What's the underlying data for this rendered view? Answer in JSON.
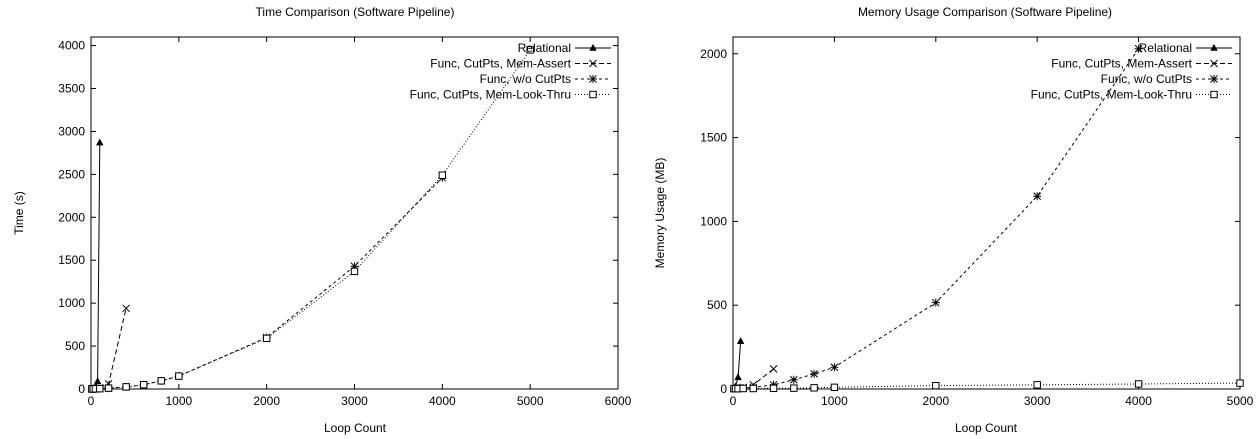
{
  "chart_data": [
    {
      "type": "line",
      "title": "Time Comparison (Software Pipeline)",
      "xlabel": "Loop Count",
      "ylabel": "Time (s)",
      "xlim": [
        0,
        6000
      ],
      "ylim": [
        0,
        4100
      ],
      "xticks": [
        "0",
        "1000",
        "2000",
        "3000",
        "4000",
        "5000",
        "6000"
      ],
      "yticks": [
        "0",
        "500",
        "1000",
        "1500",
        "2000",
        "2500",
        "3000",
        "3500",
        "4000"
      ],
      "grid": false,
      "legend_position": "top-right",
      "series": [
        {
          "name": "Relational",
          "marker": "triangle",
          "dash": "solid",
          "x": [
            10,
            25,
            50,
            75,
            100
          ],
          "y": [
            2,
            8,
            25,
            90,
            2870
          ]
        },
        {
          "name": "Func, CutPts, Mem-Assert",
          "marker": "x",
          "dash": "dashed",
          "x": [
            10,
            25,
            50,
            100,
            200,
            400
          ],
          "y": [
            1,
            2,
            5,
            15,
            60,
            940
          ]
        },
        {
          "name": "Func, w/o CutPts",
          "marker": "star",
          "dash": "dashed-dotted",
          "x": [
            10,
            25,
            50,
            100,
            200,
            400,
            600,
            800,
            1000,
            2000,
            3000,
            4000
          ],
          "y": [
            0,
            1,
            2,
            4,
            10,
            25,
            50,
            95,
            150,
            600,
            1430,
            2460
          ]
        },
        {
          "name": "Func, CutPts, Mem-Look-Thru",
          "marker": "square",
          "dash": "dotted",
          "x": [
            10,
            25,
            50,
            100,
            200,
            400,
            600,
            800,
            1000,
            2000,
            3000,
            4000,
            5000
          ],
          "y": [
            0,
            1,
            2,
            4,
            10,
            25,
            50,
            95,
            150,
            590,
            1370,
            2490,
            3950
          ]
        }
      ]
    },
    {
      "type": "line",
      "title": "Memory Usage Comparison (Software Pipeline)",
      "xlabel": "Loop Count",
      "ylabel": "Memory Usage (MB)",
      "xlim": [
        0,
        5000
      ],
      "ylim": [
        0,
        2100
      ],
      "xticks": [
        "0",
        "1000",
        "2000",
        "3000",
        "4000",
        "5000"
      ],
      "yticks": [
        "0",
        "500",
        "1000",
        "1500",
        "2000"
      ],
      "grid": false,
      "legend_position": "top-right",
      "series": [
        {
          "name": "Relational",
          "marker": "triangle",
          "dash": "solid",
          "x": [
            10,
            25,
            50,
            75
          ],
          "y": [
            2,
            15,
            70,
            285
          ]
        },
        {
          "name": "Func, CutPts, Mem-Assert",
          "marker": "x",
          "dash": "dashed",
          "x": [
            10,
            25,
            50,
            100,
            200,
            400
          ],
          "y": [
            2,
            3,
            5,
            10,
            25,
            120
          ]
        },
        {
          "name": "Func, w/o CutPts",
          "marker": "star",
          "dash": "dashed-dotted",
          "x": [
            10,
            25,
            50,
            100,
            200,
            400,
            600,
            800,
            1000,
            2000,
            3000,
            4000
          ],
          "y": [
            2,
            3,
            4,
            6,
            10,
            25,
            55,
            90,
            130,
            515,
            1150,
            2030
          ]
        },
        {
          "name": "Func, CutPts, Mem-Look-Thru",
          "marker": "square",
          "dash": "dotted",
          "x": [
            10,
            25,
            50,
            100,
            200,
            400,
            600,
            800,
            1000,
            2000,
            3000,
            4000,
            5000
          ],
          "y": [
            2,
            2,
            2,
            3,
            3,
            4,
            5,
            7,
            10,
            20,
            25,
            30,
            35
          ]
        }
      ]
    }
  ],
  "colors": {
    "ink": "#000000",
    "background": "#ffffff"
  }
}
